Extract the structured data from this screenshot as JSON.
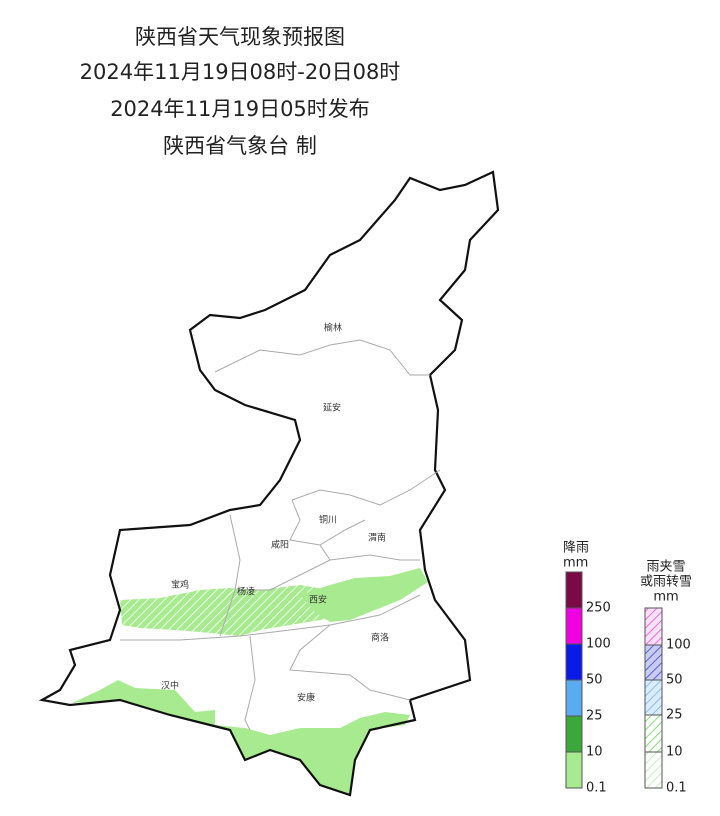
{
  "header": {
    "title": "陕西省天气现象预报图",
    "period": "2024年11月19日08时-20日08时",
    "issued": "2024年11月19日05时发布",
    "issuer": "陕西省气象台 制"
  },
  "cities": [
    "榆林",
    "延安",
    "铜川",
    "咸阳",
    "渭南",
    "宝鸡",
    "杨凌",
    "西安",
    "商洛",
    "汉中",
    "安康"
  ],
  "rain_legend": {
    "title": "降雨",
    "unit": "mm",
    "labels": [
      250,
      100,
      50,
      25,
      10,
      0.1
    ]
  },
  "mix_legend": {
    "title1": "雨夹雪",
    "title2": "或雨转雪",
    "unit": "mm",
    "labels": [
      100,
      50,
      25,
      10,
      0.1
    ]
  }
}
